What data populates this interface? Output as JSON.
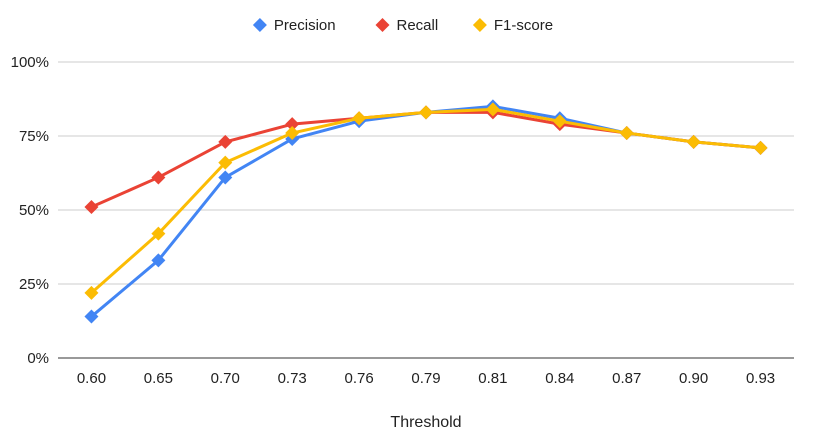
{
  "chart_data": {
    "type": "line",
    "title": "",
    "xlabel": "Threshold",
    "ylabel": "",
    "x": [
      "0.60",
      "0.65",
      "0.70",
      "0.73",
      "0.76",
      "0.79",
      "0.81",
      "0.84",
      "0.87",
      "0.90",
      "0.93"
    ],
    "ylim": [
      0,
      100
    ],
    "yticks": [
      0,
      25,
      50,
      75,
      100
    ],
    "ytick_labels": [
      "0%",
      "25%",
      "50%",
      "75%",
      "100%"
    ],
    "grid": true,
    "legend_position": "top",
    "series": [
      {
        "name": "Precision",
        "color": "#4285F4",
        "marker": "diamond",
        "values": [
          14,
          33,
          61,
          74,
          80,
          83,
          85,
          81,
          76,
          73,
          71
        ]
      },
      {
        "name": "Recall",
        "color": "#EA4335",
        "marker": "diamond",
        "values": [
          51,
          61,
          73,
          79,
          81,
          83,
          83,
          79,
          76,
          73,
          71
        ]
      },
      {
        "name": "F1-score",
        "color": "#FBBC04",
        "marker": "diamond",
        "values": [
          22,
          42,
          66,
          76,
          81,
          83,
          84,
          80,
          76,
          73,
          71
        ]
      }
    ]
  }
}
